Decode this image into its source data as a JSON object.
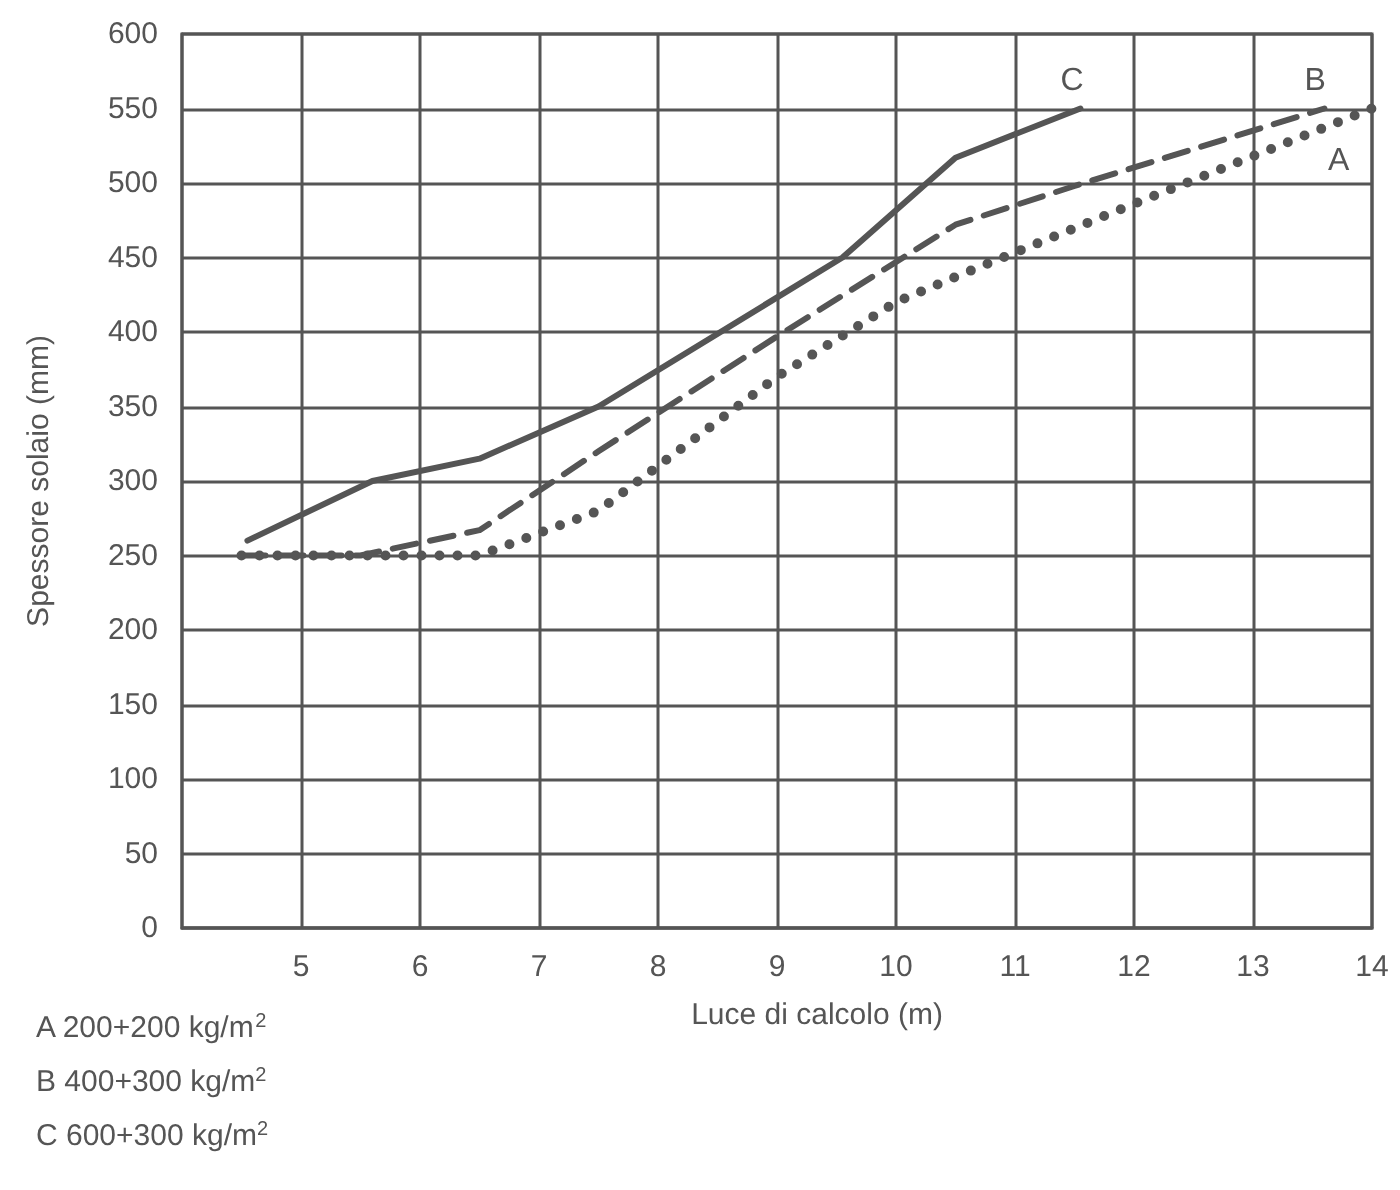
{
  "chart_data": {
    "type": "line",
    "xlabel": "Luce di calcolo (m)",
    "ylabel": "Spessore solaio (mm)",
    "xlim": [
      4,
      14
    ],
    "xticks": [
      5,
      6,
      7,
      8,
      9,
      10,
      11,
      12,
      13,
      14
    ],
    "ylim": [
      0,
      600
    ],
    "yticks": [
      0,
      50,
      100,
      150,
      200,
      250,
      300,
      350,
      400,
      450,
      500,
      550,
      600
    ],
    "grid": true,
    "legend": false,
    "marker": "none",
    "series": [
      {
        "name": "A",
        "color": "#555555",
        "line_style": "dotted",
        "x": [
          4.5,
          6.5,
          7,
          7.5,
          8,
          9,
          10,
          10.5,
          12,
          14
        ],
        "values": [
          250,
          250,
          265,
          280,
          310,
          370,
          420,
          437,
          486,
          550
        ]
      },
      {
        "name": "B",
        "color": "#555555",
        "line_style": "dashed",
        "x": [
          4.5,
          5.5,
          6.5,
          7.5,
          9,
          10.5,
          11.5,
          13.6
        ],
        "values": [
          250,
          250,
          267,
          320,
          397,
          472,
          498,
          550
        ]
      },
      {
        "name": "C",
        "color": "#555555",
        "line_style": "solid",
        "x": [
          4.55,
          5.6,
          6.5,
          7.5,
          9.55,
          10.5,
          11.55
        ],
        "values": [
          260,
          300,
          315,
          350,
          450,
          517,
          550
        ]
      }
    ],
    "annotations": [
      "A 200+200 kg/m$^{2}$",
      "B 400+300 kg/m$^{2}$",
      "C 600+300 kg/m$^{2}$"
    ]
  }
}
